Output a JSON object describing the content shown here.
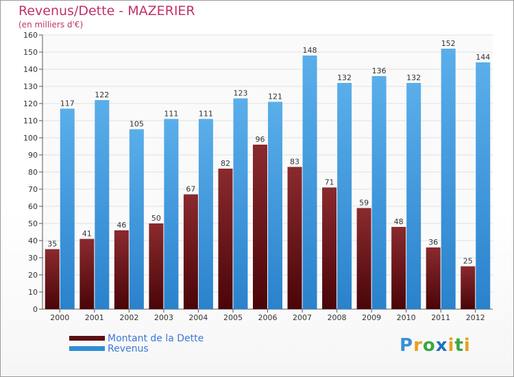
{
  "chart_data": {
    "type": "bar",
    "title": "Revenus/Dette - MAZERIER",
    "subtitle": "(en milliers d'€)",
    "categories": [
      "2000",
      "2001",
      "2002",
      "2003",
      "2004",
      "2005",
      "2006",
      "2007",
      "2008",
      "2009",
      "2010",
      "2011",
      "2012"
    ],
    "series": [
      {
        "name": "Montant de la Dette",
        "color": "#7a1a1e",
        "values": [
          35,
          41,
          46,
          50,
          67,
          82,
          96,
          83,
          71,
          59,
          48,
          36,
          25
        ]
      },
      {
        "name": "Revenus",
        "color": "#3c97dd",
        "values": [
          117,
          122,
          105,
          111,
          111,
          123,
          121,
          148,
          132,
          136,
          132,
          152,
          144
        ]
      }
    ],
    "ylim": [
      0,
      160
    ],
    "yticks": [
      0,
      10,
      20,
      30,
      40,
      50,
      60,
      70,
      80,
      90,
      100,
      110,
      120,
      130,
      140,
      150,
      160
    ],
    "grid": true,
    "legend": "bottom-left"
  },
  "legend": {
    "dette_label": "Montant de la Dette",
    "revenus_label": "Revenus"
  },
  "logo": {
    "letters": [
      "P",
      "r",
      "o",
      "x",
      "i",
      "t",
      "i"
    ]
  }
}
